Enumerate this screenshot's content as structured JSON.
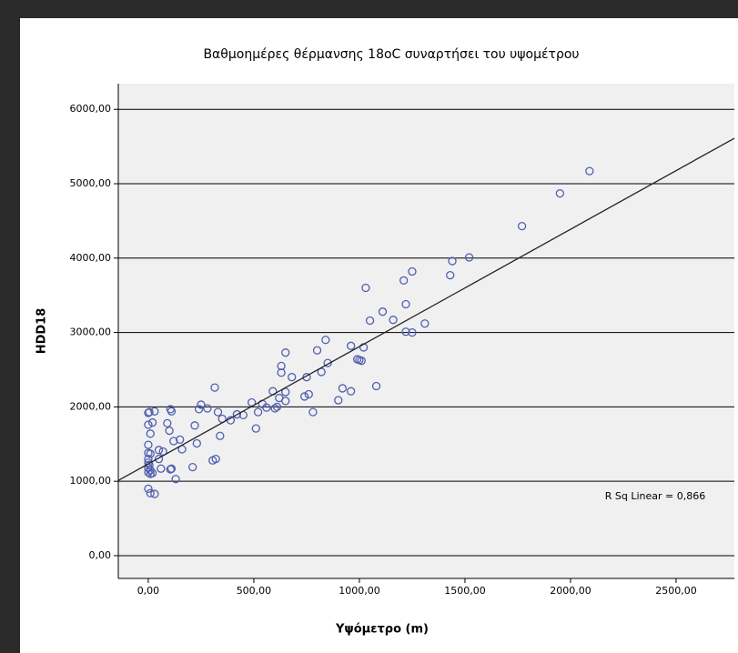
{
  "chart_data": {
    "type": "scatter",
    "title": "Βαθμοημέρες θέρμανσης 18oC συναρτήσει του υψομέτρου",
    "x_label": "Υψόμετρο (m)",
    "y_label": "HDD18",
    "annotation": "R Sq Linear = 0,866",
    "color": "#4f5fb0",
    "x": [
      0,
      5,
      0,
      20,
      10,
      0,
      0,
      10,
      0,
      0,
      5,
      0,
      10,
      0,
      10,
      20,
      0,
      10,
      30,
      30,
      50,
      60,
      70,
      50,
      90,
      100,
      105,
      110,
      120,
      110,
      105,
      150,
      130,
      160,
      210,
      220,
      230,
      240,
      250,
      280,
      305,
      320,
      315,
      330,
      340,
      350,
      390,
      420,
      450,
      490,
      510,
      520,
      540,
      560,
      590,
      600,
      610,
      620,
      630,
      630,
      650,
      650,
      650,
      680,
      740,
      760,
      750,
      780,
      800,
      820,
      840,
      850,
      900,
      920,
      960,
      960,
      990,
      1000,
      1010,
      1020,
      1030,
      1050,
      1080,
      1110,
      1160,
      1210,
      1220,
      1220,
      1250,
      1250,
      1310,
      1430,
      1440,
      1520,
      1770,
      1950,
      2090
    ],
    "values": [
      1920,
      1930,
      1760,
      1790,
      1640,
      1490,
      1380,
      1370,
      1300,
      1250,
      1220,
      1180,
      1150,
      1120,
      1100,
      1110,
      900,
      840,
      830,
      1940,
      1300,
      1170,
      1400,
      1420,
      1780,
      1680,
      1970,
      1940,
      1540,
      1170,
      1160,
      1560,
      1030,
      1430,
      1190,
      1750,
      1510,
      1970,
      2030,
      1980,
      1280,
      1300,
      2260,
      1930,
      1610,
      1840,
      1820,
      1900,
      1890,
      2060,
      1710,
      1930,
      2040,
      1990,
      2210,
      1980,
      2000,
      2120,
      2550,
      2460,
      2730,
      2200,
      2080,
      2400,
      2140,
      2170,
      2400,
      1930,
      2760,
      2470,
      2900,
      2590,
      2090,
      2250,
      2820,
      2210,
      2640,
      2630,
      2620,
      2800,
      3600,
      3160,
      2280,
      3280,
      3170,
      3700,
      3010,
      3380,
      3000,
      3820,
      3120,
      3770,
      3960,
      4010,
      4430,
      4870,
      5170
    ],
    "trend_line": {
      "x": [
        -142,
        2776
      ],
      "y": [
        1010,
        5611
      ]
    },
    "xlim": [
      -142,
      2776
    ],
    "ylim": [
      -306,
      6345
    ],
    "xticks": [
      {
        "value": 0,
        "label": "0,00"
      },
      {
        "value": 500,
        "label": "500,00"
      },
      {
        "value": 1000,
        "label": "1000,00"
      },
      {
        "value": 1500,
        "label": "1500,00"
      },
      {
        "value": 2000,
        "label": "2000,00"
      },
      {
        "value": 2500,
        "label": "2500,00"
      }
    ],
    "yticks": [
      {
        "value": 0,
        "label": "0,00"
      },
      {
        "value": 1000,
        "label": "1000,00"
      },
      {
        "value": 2000,
        "label": "2000,00"
      },
      {
        "value": 3000,
        "label": "3000,00"
      },
      {
        "value": 4000,
        "label": "4000,00"
      },
      {
        "value": 5000,
        "label": "5000,00"
      },
      {
        "value": 6000,
        "label": "6000,00"
      }
    ],
    "grid": true
  }
}
